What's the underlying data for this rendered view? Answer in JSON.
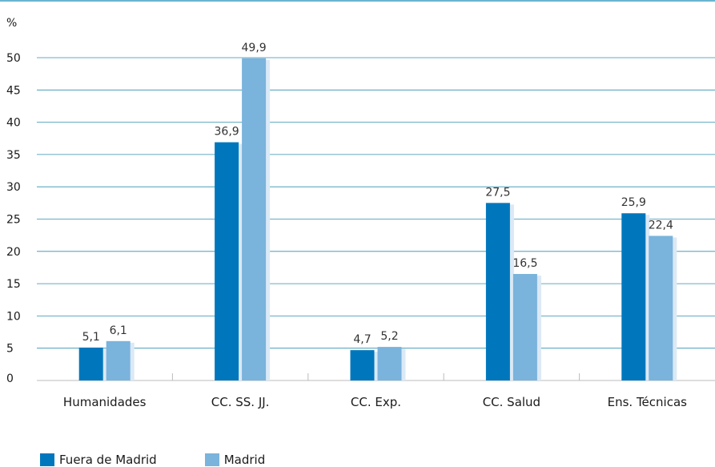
{
  "chart_data": {
    "type": "bar",
    "y_unit_label": "%",
    "categories": [
      "Humanidades",
      "CC. SS. JJ.",
      "CC. Exp.",
      "CC. Salud",
      "Ens. Técnicas"
    ],
    "series": [
      {
        "name": "Fuera de Madrid",
        "color": "#0077bd",
        "values": [
          5.1,
          36.9,
          4.7,
          27.5,
          25.9
        ],
        "labels": [
          "5,1",
          "36,9",
          "4,7",
          "27,5",
          "25,9"
        ]
      },
      {
        "name": "Madrid",
        "color": "#7ab3dc",
        "values": [
          6.1,
          49.9,
          5.2,
          16.5,
          22.4
        ],
        "labels": [
          "6,1",
          "49,9",
          "5,2",
          "16,5",
          "22,4"
        ]
      }
    ],
    "ylim": [
      0,
      50
    ],
    "yticks": [
      0,
      5,
      10,
      15,
      20,
      25,
      30,
      35,
      40,
      45,
      50
    ],
    "grid": true,
    "legend_position": "bottom-left",
    "colors": {
      "top_rule": "#3a9bbf",
      "gridline": "#2f8fb0",
      "bar_shadow": "#dbe9f6",
      "axis": "#bbbbbb"
    }
  }
}
